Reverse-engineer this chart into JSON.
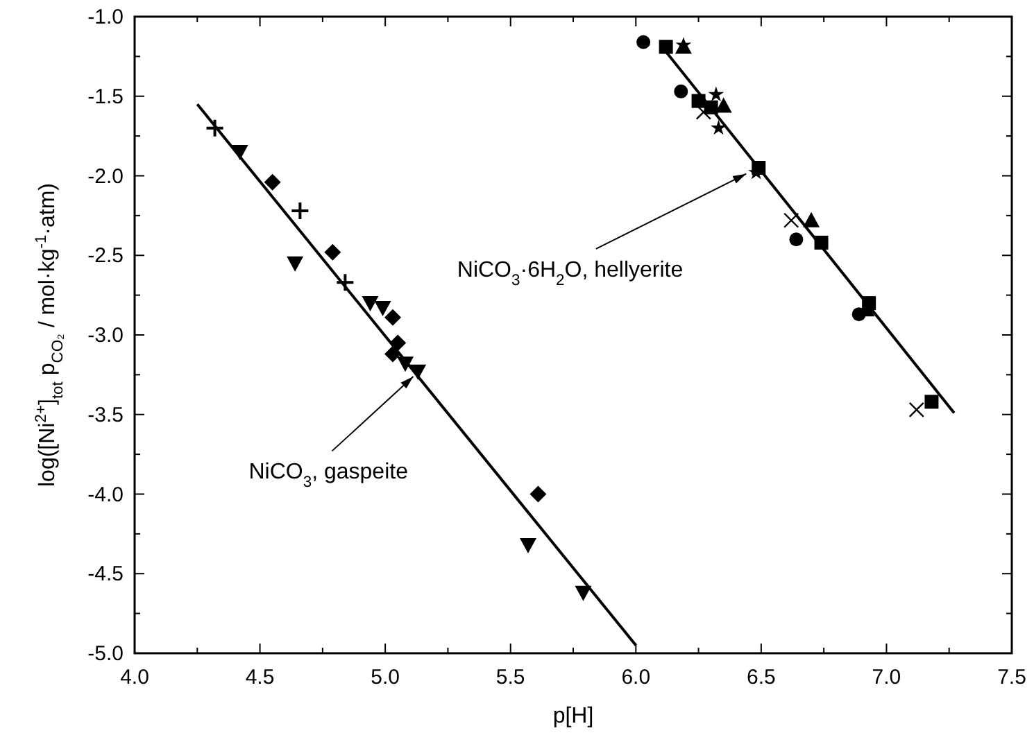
{
  "chart_data": {
    "type": "scatter",
    "xlabel": "p[H]",
    "ylabel": "log([Ni$^{2+}$]$_{tot}$ p$_{CO₂}$ / mol·kg$^{-1}$·atm)",
    "xlim": [
      4.0,
      7.5
    ],
    "ylim": [
      -5.0,
      -1.0
    ],
    "xticks": [
      {
        "value": 4.0,
        "label": "4.0"
      },
      {
        "value": 4.25,
        "label": null
      },
      {
        "value": 4.5,
        "label": "4.5"
      },
      {
        "value": 4.75,
        "label": null
      },
      {
        "value": 5.0,
        "label": "5.0"
      },
      {
        "value": 5.25,
        "label": null
      },
      {
        "value": 5.5,
        "label": "5.5"
      },
      {
        "value": 5.75,
        "label": null
      },
      {
        "value": 6.0,
        "label": "6.0"
      },
      {
        "value": 6.25,
        "label": null
      },
      {
        "value": 6.5,
        "label": "6.5"
      },
      {
        "value": 6.75,
        "label": null
      },
      {
        "value": 7.0,
        "label": "7.0"
      },
      {
        "value": 7.25,
        "label": null
      },
      {
        "value": 7.5,
        "label": "7.5"
      }
    ],
    "yticks": [
      {
        "value": -1.0,
        "label": "-1.0"
      },
      {
        "value": -1.25,
        "label": null
      },
      {
        "value": -1.5,
        "label": "-1.5"
      },
      {
        "value": -1.75,
        "label": null
      },
      {
        "value": -2.0,
        "label": "-2.0"
      },
      {
        "value": -2.25,
        "label": null
      },
      {
        "value": -2.5,
        "label": "-2.5"
      },
      {
        "value": -2.75,
        "label": null
      },
      {
        "value": -3.0,
        "label": "-3.0"
      },
      {
        "value": -3.25,
        "label": null
      },
      {
        "value": -3.5,
        "label": "-3.5"
      },
      {
        "value": -3.75,
        "label": null
      },
      {
        "value": -4.0,
        "label": "-4.0"
      },
      {
        "value": -4.25,
        "label": null
      },
      {
        "value": -4.5,
        "label": "-4.5"
      },
      {
        "value": -4.75,
        "label": null
      },
      {
        "value": -5.0,
        "label": "-5.0"
      }
    ],
    "grid": false,
    "series": [
      {
        "marker": "cross",
        "color": "#000000",
        "x": [
          4.32,
          4.66,
          4.84
        ],
        "values": [
          -1.7,
          -2.22,
          -2.67
        ]
      },
      {
        "marker": "triangle-down",
        "color": "#000000",
        "x": [
          4.42,
          4.64,
          4.94,
          4.99,
          5.08,
          5.13,
          5.57,
          5.79
        ],
        "values": [
          -1.85,
          -2.55,
          -2.8,
          -2.83,
          -3.18,
          -3.23,
          -4.32,
          -4.62
        ]
      },
      {
        "marker": "diamond",
        "color": "#000000",
        "x": [
          4.55,
          4.79,
          5.03,
          5.05,
          5.03,
          5.61
        ],
        "values": [
          -2.04,
          -2.48,
          -2.89,
          -3.05,
          -3.12,
          -4.0
        ]
      },
      {
        "type": "line",
        "marker": "none",
        "color": "#000000",
        "x": [
          4.25,
          6.0
        ],
        "values": [
          -1.55,
          -4.95
        ]
      },
      {
        "marker": "circle",
        "color": "#000000",
        "x": [
          6.03,
          6.18,
          6.64,
          6.89
        ],
        "values": [
          -1.16,
          -1.47,
          -2.4,
          -2.87
        ]
      },
      {
        "marker": "square",
        "color": "#000000",
        "x": [
          6.12,
          6.25,
          6.3,
          6.49,
          6.74,
          6.93,
          7.18
        ],
        "values": [
          -1.19,
          -1.53,
          -1.57,
          -1.95,
          -2.42,
          -2.8,
          -3.42
        ]
      },
      {
        "marker": "triangle",
        "color": "#000000",
        "x": [
          6.19,
          6.35,
          6.7,
          6.92
        ],
        "values": [
          -1.19,
          -1.56,
          -2.28,
          -2.84
        ]
      },
      {
        "marker": "star",
        "color": "#000000",
        "x": [
          6.19,
          6.32,
          6.33,
          6.48
        ],
        "values": [
          -1.18,
          -1.49,
          -1.7,
          -1.98
        ]
      },
      {
        "marker": "x",
        "color": "#000000",
        "x": [
          6.27,
          6.62,
          7.12
        ],
        "values": [
          -1.6,
          -2.28,
          -3.47
        ]
      },
      {
        "type": "line",
        "marker": "none",
        "color": "#000000",
        "x": [
          6.11,
          7.27
        ],
        "values": [
          -1.2,
          -3.49
        ]
      }
    ],
    "annotations": [
      {
        "text": "NiCO$_{3}$, gaspeite",
        "x": 5.12,
        "y": -3.25
      },
      {
        "text": "NiCO$_{3}$·6H$_{2}$O, hellyerite",
        "x": 6.45,
        "y": -1.98
      }
    ]
  }
}
